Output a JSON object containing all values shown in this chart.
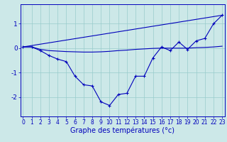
{
  "x": [
    0,
    1,
    2,
    3,
    4,
    5,
    6,
    7,
    8,
    9,
    10,
    11,
    12,
    13,
    14,
    15,
    16,
    17,
    18,
    19,
    20,
    21,
    22,
    23
  ],
  "line1": [
    0.05,
    0.05,
    -0.1,
    -0.3,
    -0.45,
    -0.55,
    -1.15,
    -1.5,
    -1.55,
    -2.2,
    -2.35,
    -1.9,
    -1.85,
    -1.15,
    -1.15,
    -0.4,
    0.05,
    -0.1,
    0.25,
    -0.05,
    0.3,
    0.4,
    1.0,
    1.35
  ],
  "line2_x": [
    0,
    23
  ],
  "line2_y": [
    0.05,
    1.35
  ],
  "line3": [
    0.05,
    0.05,
    -0.05,
    -0.1,
    -0.12,
    -0.14,
    -0.15,
    -0.16,
    -0.16,
    -0.15,
    -0.13,
    -0.1,
    -0.08,
    -0.05,
    -0.03,
    -0.01,
    0.0,
    0.0,
    0.0,
    0.0,
    0.02,
    0.03,
    0.05,
    0.08
  ],
  "background_color": "#cce8e8",
  "grid_color": "#99cccc",
  "line_color": "#0000bb",
  "xlabel": "Graphe des températures (°c)",
  "xlabel_fontsize": 7,
  "tick_fontsize": 5.5,
  "yticks": [
    -2,
    -1,
    0,
    1
  ],
  "ylim": [
    -2.8,
    1.8
  ],
  "xlim": [
    -0.3,
    23.3
  ]
}
